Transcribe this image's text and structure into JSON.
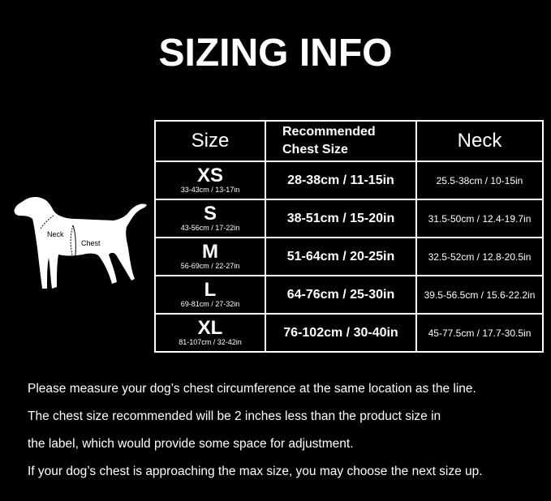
{
  "title": "SIZING INFO",
  "diagram": {
    "neck_label": "Neck",
    "chest_label": "Chest"
  },
  "table": {
    "headers": {
      "size": "Size",
      "chest_line1": "Recommended",
      "chest_line2": "Chest Size",
      "neck": "Neck"
    },
    "rows": [
      {
        "size": "XS",
        "size_range": "33-43cm / 13-17in",
        "chest": "28-38cm / 11-15in",
        "neck": "25.5-38cm / 10-15in"
      },
      {
        "size": "S",
        "size_range": "43-56cm / 17-22in",
        "chest": "38-51cm / 15-20in",
        "neck": "31.5-50cm / 12.4-19.7in"
      },
      {
        "size": "M",
        "size_range": "56-69cm / 22-27in",
        "chest": "51-64cm / 20-25in",
        "neck": "32.5-52cm / 12.8-20.5in"
      },
      {
        "size": "L",
        "size_range": "69-81cm / 27-32in",
        "chest": "64-76cm / 25-30in",
        "neck": "39.5-56.5cm / 15.6-22.2in"
      },
      {
        "size": "XL",
        "size_range": "81-107cm / 32-42in",
        "chest": "76-102cm / 30-40in",
        "neck": "45-77.5cm / 17.7-30.5in"
      }
    ]
  },
  "notes": [
    "Please measure your dog’s chest circumference at the same location as the line.",
    "The chest size recommended will be 2 inches less than the product size in",
    "the label, which would provide some space for adjustment.",
    "If your dog’s chest is approaching the max size, you may choose the next size up."
  ]
}
